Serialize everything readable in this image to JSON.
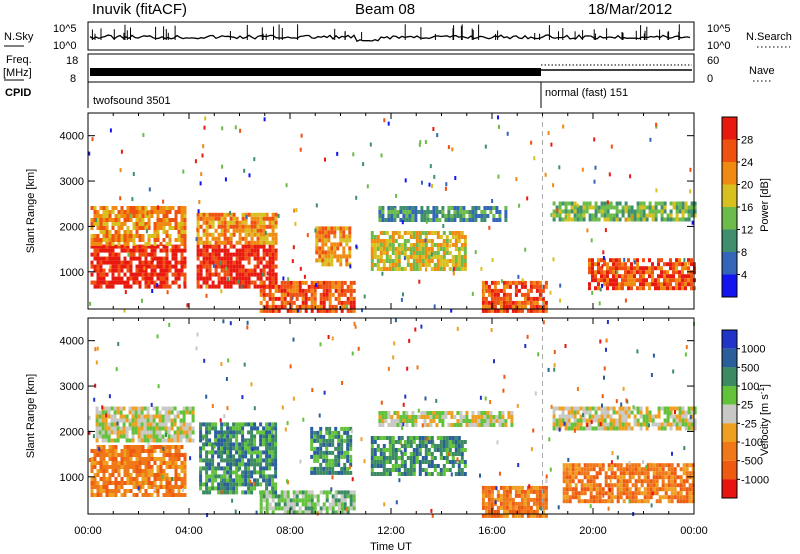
{
  "header": {
    "station": "Inuvik (fitACF)",
    "beam": "Beam 08",
    "date": "18/Mar/2012"
  },
  "top_panels": {
    "nsky_label": "N.Sky",
    "nsky_ticks": [
      "10^5",
      "10^0"
    ],
    "nsearch_label": "N.Search",
    "nsearch_ticks": [
      "10^5",
      "10^0"
    ],
    "freq_label_line1": "Freq.",
    "freq_label_line2": "[MHz]",
    "freq_ticks": [
      "18",
      "8"
    ],
    "nave_label": "Nave",
    "nave_ticks": [
      "60",
      "0"
    ],
    "cpid_label": "CPID",
    "cpid_modes": [
      {
        "name": "twofsound 3501",
        "start_hour": 0,
        "end_hour": 18
      },
      {
        "name": "normal (fast) 151",
        "start_hour": 18,
        "end_hour": 24
      }
    ]
  },
  "chart_data": [
    {
      "type": "heatmap",
      "panel": "power",
      "ylabel": "Slant Range [km]",
      "xlim": [
        0,
        24
      ],
      "ylim": [
        180,
        4500
      ],
      "y_ticks": [
        1000,
        2000,
        3000,
        4000
      ],
      "colorbar_label": "Power [dB]",
      "colorbar_ticks": [
        "4",
        "8",
        "12",
        "16",
        "20",
        "24",
        "28"
      ],
      "colorbar_colors": [
        "#1414f0",
        "#3366b8",
        "#3f8f6e",
        "#6dbb4a",
        "#d8c020",
        "#f08a10",
        "#f05010",
        "#e81a10"
      ],
      "echo_regions": [
        {
          "x0": 0.1,
          "x1": 3.9,
          "r0": 650,
          "r1": 1600,
          "level": 7
        },
        {
          "x0": 0.1,
          "x1": 3.9,
          "r0": 1600,
          "r1": 2450,
          "level": 5
        },
        {
          "x0": 4.3,
          "x1": 7.4,
          "r0": 700,
          "r1": 1600,
          "level": 7
        },
        {
          "x0": 4.3,
          "x1": 7.4,
          "r0": 1600,
          "r1": 2300,
          "level": 5
        },
        {
          "x0": 6.8,
          "x1": 10.6,
          "r0": 180,
          "r1": 800,
          "level": 6
        },
        {
          "x0": 9.0,
          "x1": 10.4,
          "r0": 1200,
          "r1": 2000,
          "level": 5
        },
        {
          "x0": 11.2,
          "x1": 15.0,
          "r0": 1050,
          "r1": 1900,
          "level": 4
        },
        {
          "x0": 11.5,
          "x1": 16.6,
          "r0": 2100,
          "r1": 2450,
          "level": 2
        },
        {
          "x0": 15.6,
          "x1": 18.2,
          "r0": 180,
          "r1": 800,
          "level": 6
        },
        {
          "x0": 18.4,
          "x1": 24.0,
          "r0": 2150,
          "r1": 2550,
          "level": 3
        },
        {
          "x0": 19.8,
          "x1": 24.0,
          "r0": 600,
          "r1": 1300,
          "level": 6
        }
      ]
    },
    {
      "type": "heatmap",
      "panel": "velocity",
      "ylabel": "Slant Range [km]",
      "xlabel": "Time UT",
      "xlim": [
        0,
        24
      ],
      "ylim": [
        180,
        4500
      ],
      "x_ticks": [
        "00:00",
        "04:00",
        "08:00",
        "12:00",
        "16:00",
        "20:00",
        "00:00"
      ],
      "y_ticks": [
        1000,
        2000,
        3000,
        4000
      ],
      "colorbar_label": "Velocity [m s^-1]",
      "colorbar_ticks": [
        "1000",
        "500",
        "100",
        "25",
        "-25",
        "-100",
        "-500",
        "-1000"
      ],
      "colorbar_colors": [
        "#2233c8",
        "#2a5e9a",
        "#3b8a62",
        "#62c23a",
        "#c8c8c4",
        "#f0a020",
        "#f07818",
        "#ee5a10",
        "#e81410"
      ],
      "echo_regions": [
        {
          "x0": 0.1,
          "x1": 3.9,
          "r0": 600,
          "r1": 1700,
          "level": 6
        },
        {
          "x0": 0.3,
          "x1": 4.2,
          "r0": 1800,
          "r1": 2550,
          "level": 4
        },
        {
          "x0": 4.4,
          "x1": 7.4,
          "r0": 700,
          "r1": 2200,
          "level": 2
        },
        {
          "x0": 6.8,
          "x1": 10.6,
          "r0": 180,
          "r1": 700,
          "level": 3
        },
        {
          "x0": 8.8,
          "x1": 10.4,
          "r0": 1100,
          "r1": 2100,
          "level": 2
        },
        {
          "x0": 11.2,
          "x1": 15.0,
          "r0": 1050,
          "r1": 1900,
          "level": 2
        },
        {
          "x0": 11.5,
          "x1": 16.8,
          "r0": 2100,
          "r1": 2450,
          "level": 4
        },
        {
          "x0": 15.6,
          "x1": 18.2,
          "r0": 180,
          "r1": 800,
          "level": 6
        },
        {
          "x0": 18.4,
          "x1": 24.0,
          "r0": 2100,
          "r1": 2550,
          "level": 4
        },
        {
          "x0": 18.8,
          "x1": 24.0,
          "r0": 500,
          "r1": 1300,
          "level": 6
        }
      ]
    }
  ]
}
